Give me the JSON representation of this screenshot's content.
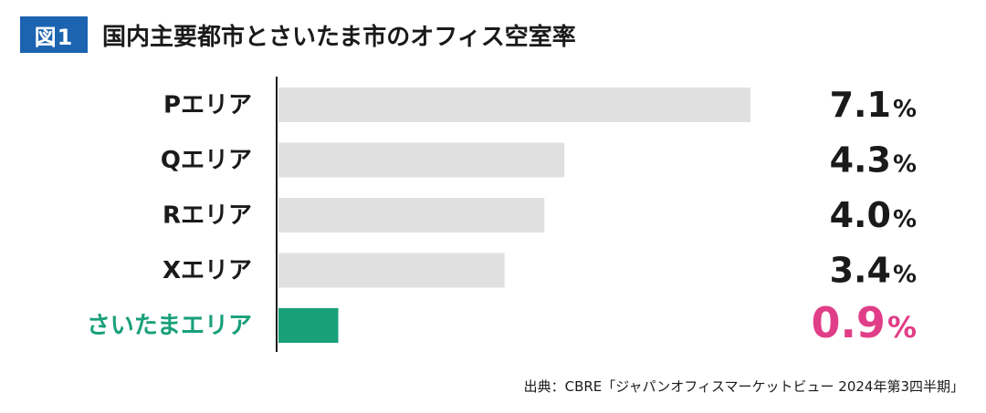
{
  "header": {
    "badge": "図1",
    "title": "国内主要都市とさいたま市のオフィス空室率"
  },
  "colors": {
    "badge_bg": "#1c63b0",
    "bar_default": "#dfe0df",
    "bar_highlight": "#18a07a",
    "label_default": "#1a1a1a",
    "label_highlight": "#18a07a",
    "value_default": "#1a1a1a",
    "value_highlight": "#e03e88",
    "axis": "#1a1a1a"
  },
  "chart_data": {
    "type": "bar",
    "orientation": "horizontal",
    "categories": [
      "Pエリア",
      "Qエリア",
      "Rエリア",
      "Xエリア",
      "さいたまエリア"
    ],
    "values": [
      7.1,
      4.3,
      4.0,
      3.4,
      0.9
    ],
    "value_labels": [
      "7.1",
      "4.3",
      "4.0",
      "3.4",
      "0.9"
    ],
    "unit": "%",
    "highlight_index": 4,
    "xlim": [
      0,
      7.1
    ],
    "grid": false,
    "legend": "none"
  },
  "source": "出典：CBRE「ジャパンオフィスマーケットビュー 2024年第3四半期」"
}
